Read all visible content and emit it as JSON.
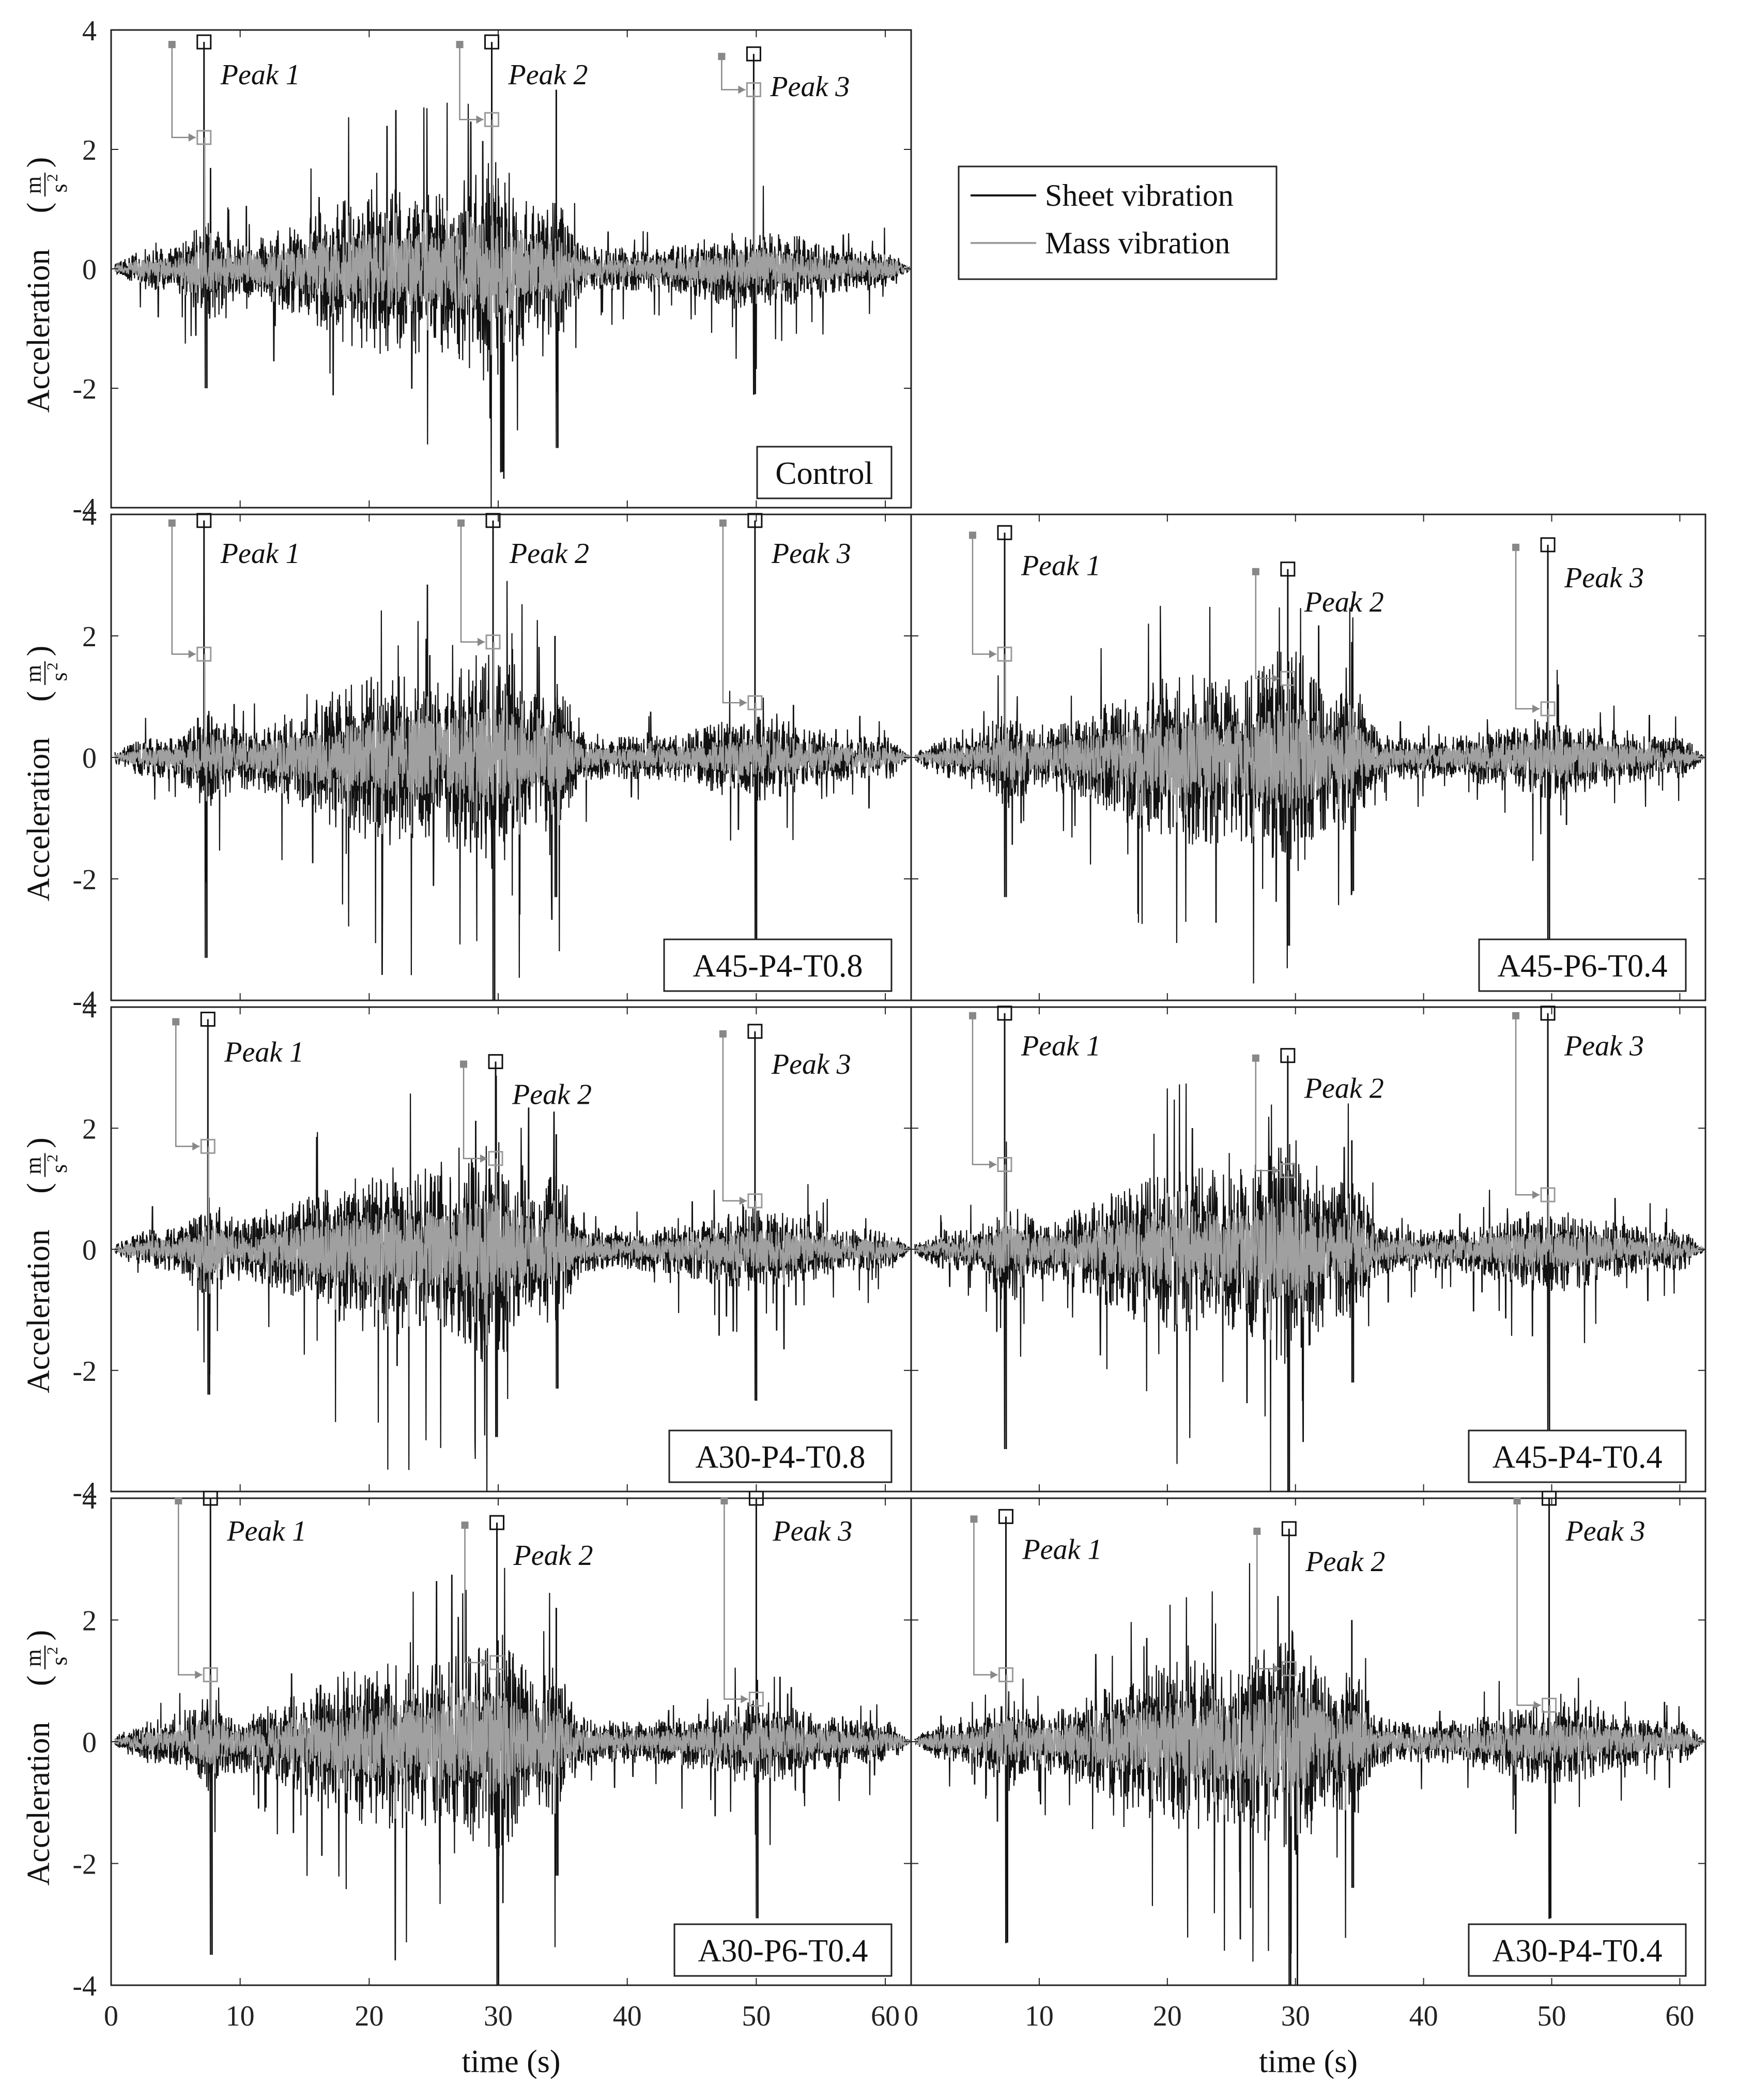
{
  "chart_data": {
    "type": "line",
    "xlabel": "time (s)",
    "ylabel": "Acceleration (m/s²)",
    "ylabel_text": "Acceleration",
    "unit_num": "m",
    "unit_den": "s",
    "unit_exp": "2",
    "xlim": [
      0,
      62
    ],
    "ylim": [
      -4,
      4
    ],
    "xticks": [
      0,
      10,
      20,
      30,
      40,
      50,
      60
    ],
    "yticks": [
      4,
      2,
      0,
      -2,
      -4
    ],
    "grid": false,
    "legend": {
      "placement": "right of Control panel",
      "entries": [
        {
          "name": "Sheet vibration",
          "color": "#111111"
        },
        {
          "name": "Mass vibration",
          "color": "#a0a0a0"
        }
      ]
    },
    "peak_labels": [
      "Peak 1",
      "Peak 2",
      "Peak 3"
    ],
    "panels": [
      {
        "label": "Control",
        "peaks": [
          {
            "t": 7.2,
            "sheet": 3.8,
            "mass": 2.2
          },
          {
            "t": 29.5,
            "sheet": 3.8,
            "mass": 2.5
          },
          {
            "t": 49.8,
            "sheet": 3.6,
            "mass": 3.0
          }
        ],
        "extrema": {
          "bursts": [
            {
              "t": 34.5,
              "pos": 3.0,
              "neg": -3.0
            }
          ],
          "min": [
            {
              "t": 30.2,
              "v": -3.4
            },
            {
              "t": 7.3,
              "v": -2.0
            },
            {
              "t": 49.8,
              "v": -2.1
            }
          ]
        }
      },
      {
        "label": "A45-P4-T0.8",
        "peaks": [
          {
            "t": 7.2,
            "sheet": 3.9,
            "mass": 1.7
          },
          {
            "t": 29.6,
            "sheet": 3.9,
            "mass": 1.9
          },
          {
            "t": 49.9,
            "sheet": 3.9,
            "mass": 0.9
          }
        ],
        "extrema": {
          "bursts": [
            {
              "t": 34.4,
              "pos": 2.0,
              "neg": -2.3
            }
          ],
          "min": [
            {
              "t": 29.6,
              "v": -4.0
            },
            {
              "t": 7.3,
              "v": -3.3
            },
            {
              "t": 49.9,
              "v": -3.0
            }
          ]
        }
      },
      {
        "label": "A45-P6-T0.4",
        "peaks": [
          {
            "t": 7.3,
            "sheet": 3.7,
            "mass": 1.7
          },
          {
            "t": 29.4,
            "sheet": 3.1,
            "mass": 1.3
          },
          {
            "t": 49.7,
            "sheet": 3.5,
            "mass": 0.8
          }
        ],
        "extrema": {
          "bursts": [
            {
              "t": 34.4,
              "pos": 1.9,
              "neg": -2.2
            }
          ],
          "min": [
            {
              "t": 29.4,
              "v": -3.1
            },
            {
              "t": 7.3,
              "v": -2.3
            },
            {
              "t": 49.7,
              "v": -3.2
            }
          ]
        }
      },
      {
        "label": "A30-P4-T0.8",
        "peaks": [
          {
            "t": 7.5,
            "sheet": 3.8,
            "mass": 1.7
          },
          {
            "t": 29.8,
            "sheet": 3.1,
            "mass": 1.5
          },
          {
            "t": 49.9,
            "sheet": 3.6,
            "mass": 0.8
          }
        ],
        "extrema": {
          "bursts": [
            {
              "t": 34.5,
              "pos": 1.9,
              "neg": -2.3
            }
          ],
          "min": [
            {
              "t": 29.8,
              "v": -3.1
            },
            {
              "t": 7.5,
              "v": -2.4
            },
            {
              "t": 49.9,
              "v": -2.5
            }
          ]
        }
      },
      {
        "label": "A45-P4-T0.4",
        "peaks": [
          {
            "t": 7.3,
            "sheet": 3.9,
            "mass": 1.4
          },
          {
            "t": 29.4,
            "sheet": 3.2,
            "mass": 1.3
          },
          {
            "t": 49.7,
            "sheet": 3.9,
            "mass": 0.9
          }
        ],
        "extrema": {
          "bursts": [
            {
              "t": 34.4,
              "pos": 1.8,
              "neg": -2.2
            }
          ],
          "min": [
            {
              "t": 29.4,
              "v": -4.0
            },
            {
              "t": 7.3,
              "v": -3.3
            },
            {
              "t": 49.7,
              "v": -3.0
            }
          ]
        }
      },
      {
        "label": "A30-P6-T0.4",
        "peaks": [
          {
            "t": 7.7,
            "sheet": 4.0,
            "mass": 1.1
          },
          {
            "t": 29.9,
            "sheet": 3.6,
            "mass": 1.3
          },
          {
            "t": 50.0,
            "sheet": 4.0,
            "mass": 0.7
          }
        ],
        "extrema": {
          "bursts": [
            {
              "t": 34.5,
              "pos": 2.2,
              "neg": -2.2
            }
          ],
          "min": [
            {
              "t": 29.9,
              "v": -4.0
            },
            {
              "t": 7.7,
              "v": -3.5
            },
            {
              "t": 50.0,
              "v": -2.9
            }
          ]
        }
      },
      {
        "label": "A30-P4-T0.4",
        "peaks": [
          {
            "t": 7.4,
            "sheet": 3.7,
            "mass": 1.1
          },
          {
            "t": 29.5,
            "sheet": 3.5,
            "mass": 1.2
          },
          {
            "t": 49.8,
            "sheet": 4.0,
            "mass": 0.6
          }
        ],
        "extrema": {
          "bursts": [
            {
              "t": 34.4,
              "pos": 2.0,
              "neg": -2.4
            }
          ],
          "min": [
            {
              "t": 29.5,
              "v": -4.0
            },
            {
              "t": 7.4,
              "v": -3.3
            },
            {
              "t": 49.8,
              "v": -2.9
            }
          ]
        }
      }
    ]
  }
}
